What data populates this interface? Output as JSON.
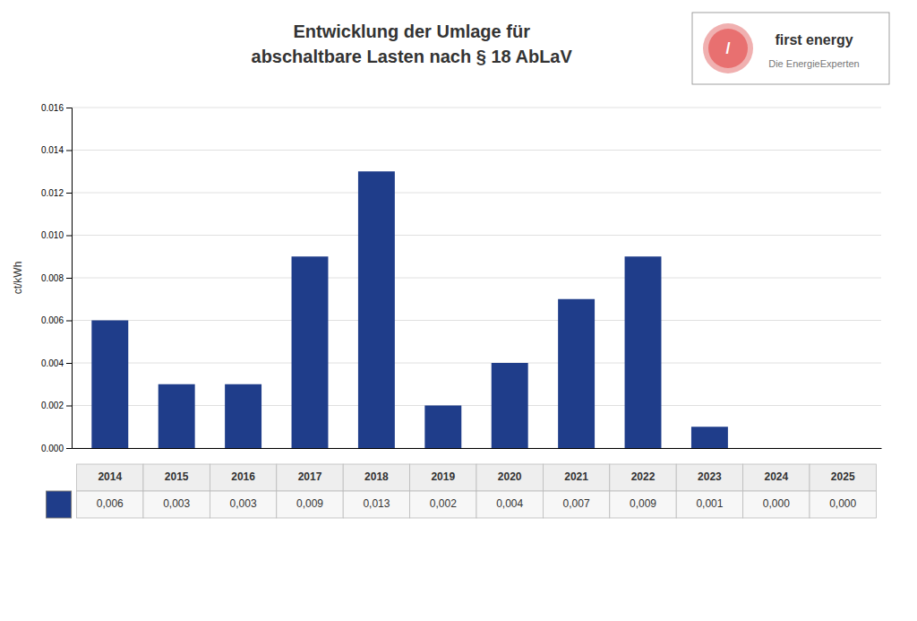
{
  "chart_data": {
    "type": "bar",
    "title": "Entwicklung der Umlage für",
    "subtitle": "abschaltbare Lasten nach § 18 AbLaV",
    "ylabel": "ct/kWh",
    "annotations": [
      "/",
      "first energy",
      "Die EnergieExperten"
    ],
    "categories": [
      "2014",
      "2015",
      "2016",
      "2017",
      "2018",
      "2019",
      "2020",
      "2021",
      "2022",
      "2023",
      "2024",
      "2025"
    ],
    "values": [
      0.006,
      0.003,
      0.003,
      0.009,
      0.013,
      0.002,
      0.004,
      0.007,
      0.009,
      0.001,
      0.0,
      0.0
    ],
    "value_labels": [
      "0,006",
      "0,003",
      "0,003",
      "0,009",
      "0,013",
      "0,002",
      "0,004",
      "0,007",
      "0,009",
      "0,001",
      "0,000",
      "0,000"
    ],
    "data_labels": true,
    "color": "#1f3d8a",
    "ylim": [
      0,
      0.016
    ],
    "yticks": [
      {
        "value": 0,
        "label": "0.000"
      },
      0.002,
      0.004,
      0.006,
      0.008,
      {
        "value": 0.01,
        "label": "0.010"
      },
      0.012,
      0.014,
      0.016
    ],
    "grid": true,
    "tick_labels": "y"
  }
}
